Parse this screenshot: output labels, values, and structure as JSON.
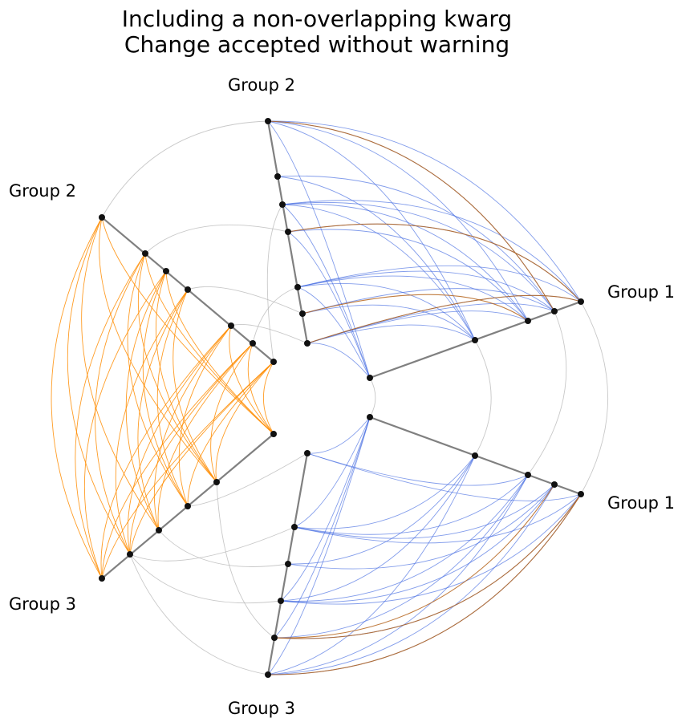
{
  "title_lines": [
    "Including a non-overlapping kwarg",
    "Change accepted without warning"
  ],
  "axes": [
    {
      "id": "ax1-top",
      "label": "Group 1"
    },
    {
      "id": "ax2-top",
      "label": "Group 2"
    },
    {
      "id": "ax2-left",
      "label": "Group 2"
    },
    {
      "id": "ax3-left",
      "label": "Group 3"
    },
    {
      "id": "ax3-bottom",
      "label": "Group 3"
    },
    {
      "id": "ax1-bottom",
      "label": "Group 1"
    }
  ],
  "colors": {
    "axis": "#808080",
    "node": "#111111",
    "edge_blue": "#4169e1",
    "edge_orange": "#ff8c00",
    "edge_brown": "#b5651d",
    "edge_gray": "#b0b0b0"
  }
}
